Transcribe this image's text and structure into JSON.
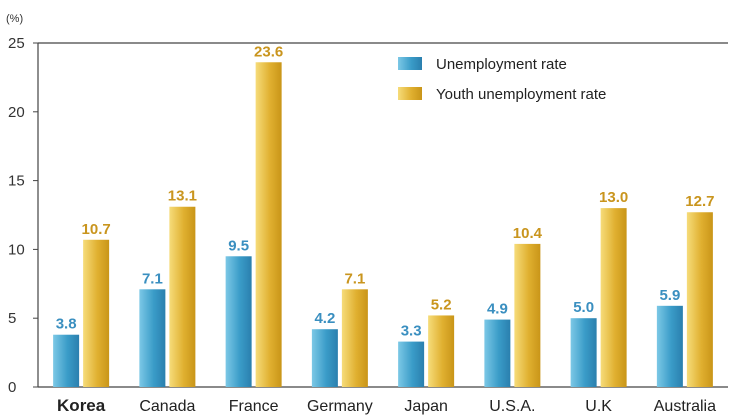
{
  "chart_data": {
    "type": "bar",
    "unit_label": "(%)",
    "categories": [
      "Korea",
      "Canada",
      "France",
      "Germany",
      "Japan",
      "U.S.A.",
      "U.K",
      "Australia"
    ],
    "highlight_category": "Korea",
    "series": [
      {
        "name": "Unemployment rate",
        "values": [
          3.8,
          7.1,
          9.5,
          4.2,
          3.3,
          4.9,
          5.0,
          5.9
        ],
        "color": "#3a9cc8",
        "label_color": "#3a8fc0"
      },
      {
        "name": "Youth unemployment rate",
        "values": [
          10.7,
          13.1,
          23.6,
          7.1,
          5.2,
          10.4,
          13.0,
          12.7
        ],
        "color": "#e0b030",
        "label_color": "#c9951e"
      }
    ],
    "ylim": [
      0,
      25
    ],
    "yticks": [
      0,
      5,
      10,
      15,
      20,
      25
    ],
    "legend_position": "top-right",
    "grid": false
  }
}
